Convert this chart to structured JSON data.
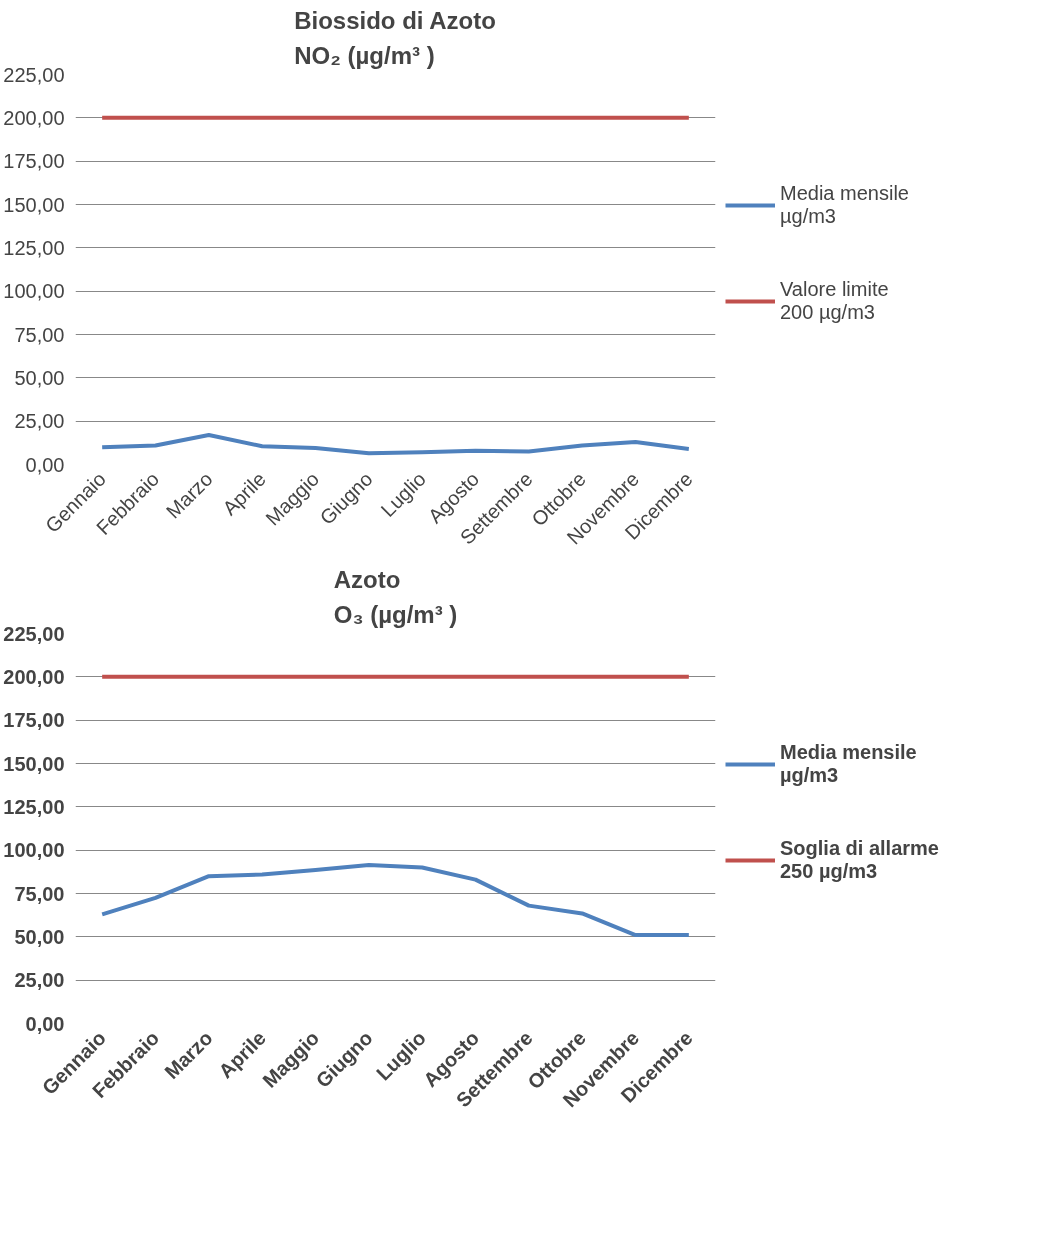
{
  "chart_data": [
    {
      "type": "line",
      "title": "Biossido di Azoto\nNO₂ (µg/m³ )",
      "categories": [
        "Gennaio",
        "Febbraio",
        "Marzo",
        "Aprile",
        "Maggio",
        "Giugno",
        "Luglio",
        "Agosto",
        "Settembre",
        "Ottobre",
        "Novembre",
        "Dicembre"
      ],
      "series": [
        {
          "name": "Media mensile\nµg/m3",
          "color": "#4f81bd",
          "values": [
            10,
            11,
            17,
            10.5,
            9.5,
            6.5,
            7,
            8,
            7.5,
            11,
            13,
            9
          ]
        },
        {
          "name": "Valore limite\n200 µg/m3",
          "color": "#c0504d",
          "values": [
            200,
            200,
            200,
            200,
            200,
            200,
            200,
            200,
            200,
            200,
            200,
            200
          ]
        }
      ],
      "ylim": [
        0,
        225
      ],
      "yticks": [
        {
          "value": 0,
          "label": "0,00"
        },
        {
          "value": 25,
          "label": "25,00"
        },
        {
          "value": 50,
          "label": "50,00"
        },
        {
          "value": 75,
          "label": "75,00"
        },
        {
          "value": 100,
          "label": "100,00"
        },
        {
          "value": 125,
          "label": "125,00"
        },
        {
          "value": 150,
          "label": "150,00"
        },
        {
          "value": 175,
          "label": "175,00"
        },
        {
          "value": 200,
          "label": "200,00"
        },
        {
          "value": 225,
          "label": "225,00"
        }
      ],
      "grid": "y",
      "legend": "right",
      "marker": "none",
      "line_style": "solid"
    },
    {
      "type": "line",
      "title": "Azoto\nO₃ (µg/m³ )",
      "categories": [
        "Gennaio",
        "Febbraio",
        "Marzo",
        "Aprile",
        "Maggio",
        "Giugno",
        "Luglio",
        "Agosto",
        "Settembre",
        "Ottobre",
        "Novembre",
        "Dicembre"
      ],
      "series": [
        {
          "name": "Media mensile\nµg/m3",
          "color": "#4f81bd",
          "values": [
            63,
            72.5,
            85,
            86,
            88.5,
            91.5,
            90,
            83,
            68,
            63.5,
            51,
            51
          ]
        },
        {
          "name": "Soglia di allarme\n250 µg/m3",
          "color": "#c0504d",
          "values": [
            200,
            200,
            200,
            200,
            200,
            200,
            200,
            200,
            200,
            200,
            200,
            200
          ]
        }
      ],
      "ylim": [
        0,
        225
      ],
      "yticks": [
        {
          "value": 0,
          "label": "0,00"
        },
        {
          "value": 25,
          "label": "25,00"
        },
        {
          "value": 50,
          "label": "50,00"
        },
        {
          "value": 75,
          "label": "75,00"
        },
        {
          "value": 100,
          "label": "100,00"
        },
        {
          "value": 125,
          "label": "125,00"
        },
        {
          "value": 150,
          "label": "150,00"
        },
        {
          "value": 175,
          "label": "175,00"
        },
        {
          "value": 200,
          "label": "200,00"
        },
        {
          "value": 225,
          "label": "225,00"
        }
      ],
      "grid": "y",
      "legend": "right",
      "marker": "none",
      "line_style": "solid"
    }
  ]
}
